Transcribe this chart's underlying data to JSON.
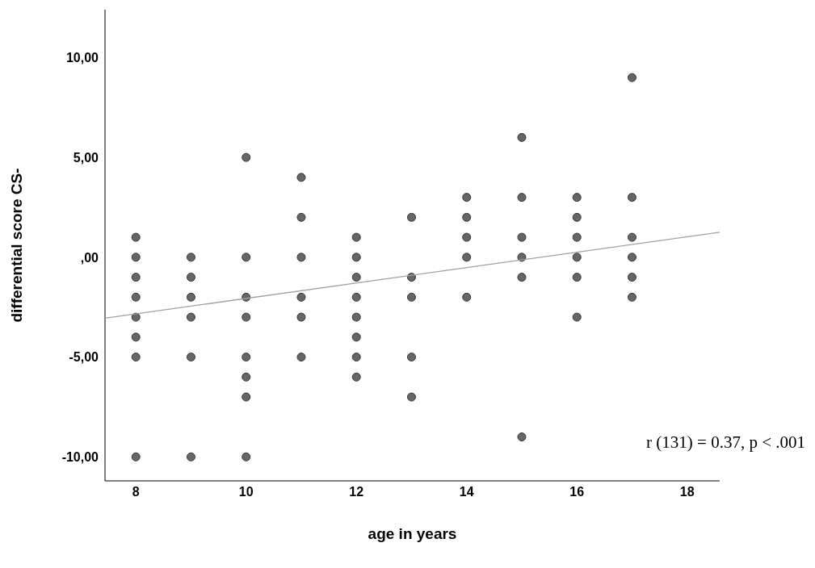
{
  "chart_data": {
    "type": "scatter",
    "xlabel": "age in years",
    "ylabel": "differential score CS-",
    "xlim": [
      7.44,
      18.59
    ],
    "ylim": [
      -11.2,
      12.4
    ],
    "xticks": [
      8,
      10,
      12,
      14,
      16,
      18
    ],
    "yticks": [
      {
        "value": 10,
        "label": "10,00"
      },
      {
        "value": 5,
        "label": "5,00"
      },
      {
        "value": 0,
        "label": ",00"
      },
      {
        "value": -5,
        "label": "-5,00"
      },
      {
        "value": -10,
        "label": "-10,00"
      }
    ],
    "grid": false,
    "legend": false,
    "marker": "circle",
    "annotations": [
      "r (131) = 0.37, p < .001"
    ],
    "series": [
      {
        "type": "scatter",
        "color": "#666666",
        "x": [
          8,
          8,
          8,
          8,
          8,
          8,
          8,
          8,
          9,
          9,
          9,
          9,
          9,
          9,
          10,
          10,
          10,
          10,
          10,
          10,
          10,
          10,
          11,
          11,
          11,
          11,
          11,
          11,
          12,
          12,
          12,
          12,
          12,
          12,
          12,
          12,
          13,
          13,
          13,
          13,
          13,
          14,
          14,
          14,
          14,
          14,
          15,
          15,
          15,
          15,
          15,
          15,
          16,
          16,
          16,
          16,
          16,
          16,
          17,
          17,
          17,
          17,
          17,
          17
        ],
        "values": [
          1,
          0,
          -1,
          -2,
          -3,
          -4,
          -5,
          -10,
          0,
          -1,
          -2,
          -3,
          -5,
          -10,
          5,
          0,
          -2,
          -3,
          -5,
          -6,
          -7,
          -10,
          4,
          2,
          0,
          -2,
          -3,
          -5,
          1,
          0,
          -1,
          -2,
          -3,
          -4,
          -5,
          -6,
          2,
          -1,
          -2,
          -5,
          -7,
          3,
          2,
          1,
          0,
          -2,
          6,
          3,
          1,
          0,
          -1,
          -9,
          3,
          2,
          1,
          0,
          -1,
          -3,
          9,
          3,
          1,
          0,
          -1,
          -2
        ]
      },
      {
        "type": "line",
        "color": "#a0a0a0",
        "line_style": "solid",
        "marker": "none",
        "x": [
          7.44,
          18.59
        ],
        "values": [
          -3.05,
          1.25
        ]
      }
    ]
  }
}
